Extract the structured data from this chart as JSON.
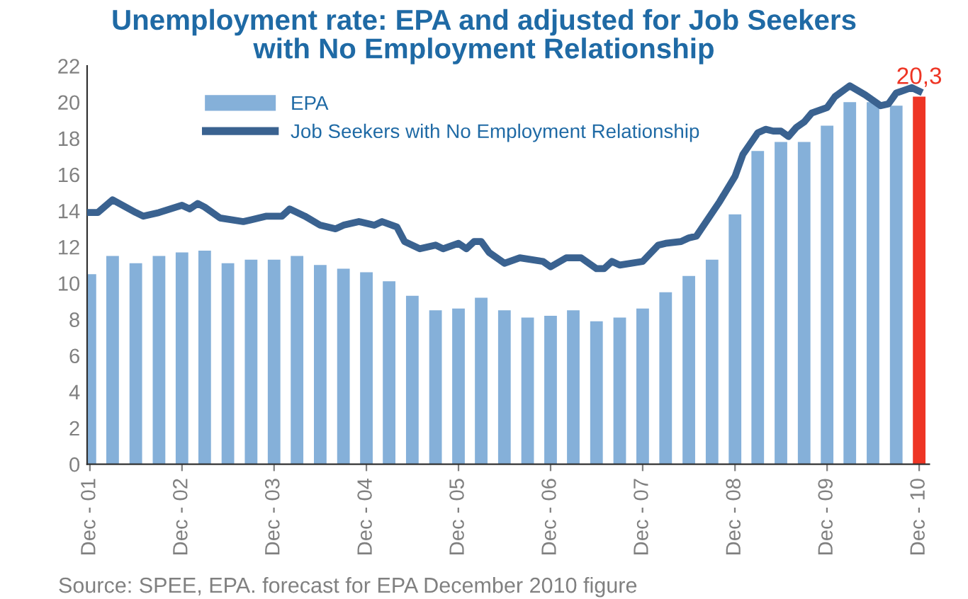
{
  "chart_data": {
    "type": "bar",
    "title": "Unemployment rate: EPA and adjusted for Job Seekers\nwith No Employment Relationship",
    "x": [
      "2001-12",
      "2002-03",
      "2002-06",
      "2002-09",
      "2002-12",
      "2003-03",
      "2003-06",
      "2003-09",
      "2003-12",
      "2004-03",
      "2004-06",
      "2004-09",
      "2004-12",
      "2005-03",
      "2005-06",
      "2005-09",
      "2005-12",
      "2006-03",
      "2006-06",
      "2006-09",
      "2006-12",
      "2007-03",
      "2007-06",
      "2007-09",
      "2007-12",
      "2008-03",
      "2008-06",
      "2008-09",
      "2008-12",
      "2009-03",
      "2009-06",
      "2009-09",
      "2009-12",
      "2010-03",
      "2010-06",
      "2010-09",
      "2010-12"
    ],
    "series": [
      {
        "name": "EPA",
        "color": "#85b0d9",
        "colors": [
          "#85b0d9",
          "#85b0d9",
          "#85b0d9",
          "#85b0d9",
          "#85b0d9",
          "#85b0d9",
          "#85b0d9",
          "#85b0d9",
          "#85b0d9",
          "#85b0d9",
          "#85b0d9",
          "#85b0d9",
          "#85b0d9",
          "#85b0d9",
          "#85b0d9",
          "#85b0d9",
          "#85b0d9",
          "#85b0d9",
          "#85b0d9",
          "#85b0d9",
          "#85b0d9",
          "#85b0d9",
          "#85b0d9",
          "#85b0d9",
          "#85b0d9",
          "#85b0d9",
          "#85b0d9",
          "#85b0d9",
          "#85b0d9",
          "#85b0d9",
          "#85b0d9",
          "#85b0d9",
          "#85b0d9",
          "#85b0d9",
          "#85b0d9",
          "#85b0d9",
          "#ee3524"
        ],
        "values": [
          10.5,
          11.5,
          11.1,
          11.5,
          11.7,
          11.8,
          11.1,
          11.3,
          11.3,
          11.5,
          11.0,
          10.8,
          10.6,
          10.1,
          9.3,
          8.5,
          8.6,
          9.2,
          8.5,
          8.1,
          8.2,
          8.5,
          7.9,
          8.1,
          8.6,
          9.5,
          10.4,
          11.3,
          13.8,
          17.3,
          17.8,
          17.8,
          18.7,
          20.0,
          20.0,
          19.8,
          20.3
        ],
        "value_labels": [
          null,
          null,
          null,
          null,
          null,
          null,
          null,
          null,
          null,
          null,
          null,
          null,
          null,
          null,
          null,
          null,
          null,
          null,
          null,
          null,
          null,
          null,
          null,
          null,
          null,
          null,
          null,
          null,
          null,
          null,
          null,
          null,
          null,
          null,
          null,
          null,
          "20,3"
        ]
      },
      {
        "name": "Job Seekers with No Employment Relationship",
        "type": "line",
        "color": "#3a6290",
        "x": [
          "2001-12",
          "2002-01",
          "2002-03",
          "2002-06",
          "2002-07",
          "2002-09",
          "2002-12",
          "2003-01",
          "2003-02",
          "2003-03",
          "2003-05",
          "2003-08",
          "2003-09",
          "2003-11",
          "2004-01",
          "2004-02",
          "2004-04",
          "2004-06",
          "2004-08",
          "2004-09",
          "2004-11",
          "2005-01",
          "2005-02",
          "2005-04",
          "2005-05",
          "2005-07",
          "2005-09",
          "2005-10",
          "2005-12",
          "2006-01",
          "2006-02",
          "2006-03",
          "2006-04",
          "2006-06",
          "2006-08",
          "2006-11",
          "2006-12",
          "2007-02",
          "2007-04",
          "2007-06",
          "2007-07",
          "2007-08",
          "2007-09",
          "2007-12",
          "2008-02",
          "2008-03",
          "2008-05",
          "2008-06",
          "2008-07",
          "2008-10",
          "2008-12",
          "2009-01",
          "2009-03",
          "2009-04",
          "2009-05",
          "2009-06",
          "2009-07",
          "2009-08",
          "2009-09",
          "2009-10",
          "2009-12",
          "2010-01",
          "2010-03",
          "2010-05",
          "2010-07",
          "2010-08",
          "2010-09",
          "2010-11",
          "2010-12"
        ],
        "values": [
          13.9,
          13.9,
          14.6,
          13.9,
          13.7,
          13.9,
          14.3,
          14.1,
          14.4,
          14.2,
          13.6,
          13.4,
          13.5,
          13.7,
          13.7,
          14.1,
          13.7,
          13.2,
          13.0,
          13.2,
          13.4,
          13.2,
          13.4,
          13.1,
          12.3,
          11.9,
          12.1,
          11.9,
          12.2,
          11.9,
          12.3,
          12.3,
          11.7,
          11.1,
          11.4,
          11.2,
          10.9,
          11.4,
          11.4,
          10.8,
          10.8,
          11.2,
          11.0,
          11.2,
          12.1,
          12.2,
          12.3,
          12.5,
          12.6,
          14.5,
          15.9,
          17.1,
          18.3,
          18.5,
          18.4,
          18.4,
          18.1,
          18.6,
          18.9,
          19.4,
          19.7,
          20.3,
          20.9,
          20.4,
          19.8,
          19.9,
          20.5,
          20.8,
          20.6
        ]
      }
    ],
    "xlim": [
      "2001-11-20",
      "2011-01-10"
    ],
    "xticks": [
      {
        "value": "2001-12",
        "label": "Dec - 01"
      },
      {
        "value": "2002-12",
        "label": "Dec - 02"
      },
      {
        "value": "2003-12",
        "label": "Dec - 03"
      },
      {
        "value": "2004-12",
        "label": "Dec - 04"
      },
      {
        "value": "2005-12",
        "label": "Dec - 05"
      },
      {
        "value": "2006-12",
        "label": "Dec - 06"
      },
      {
        "value": "2007-12",
        "label": "Dec - 07"
      },
      {
        "value": "2008-12",
        "label": "Dec - 08"
      },
      {
        "value": "2009-12",
        "label": "Dec - 09"
      },
      {
        "value": "2010-12",
        "label": "Dec - 10"
      }
    ],
    "ylim": [
      0,
      22
    ],
    "yticks": [
      0,
      2,
      4,
      6,
      8,
      10,
      12,
      14,
      16,
      18,
      20,
      22
    ],
    "grid": false,
    "legend": "top left",
    "annotations": [
      "Source: SPEE, EPA. forecast for EPA December 2010 figure"
    ]
  }
}
